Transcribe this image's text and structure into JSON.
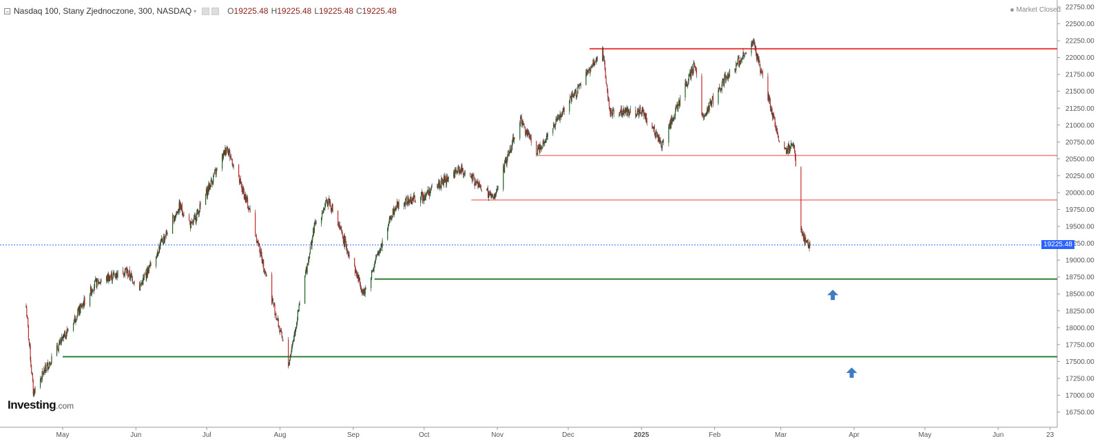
{
  "header": {
    "symbol_label": "Nasdaq 100, Stany Zjednoczone, 300, NASDAQ",
    "ohlc": [
      {
        "key": "O",
        "value": "19225.48"
      },
      {
        "key": "H",
        "value": "19225.48"
      },
      {
        "key": "L",
        "value": "19225.48"
      },
      {
        "key": "C",
        "value": "19225.48"
      }
    ]
  },
  "status": {
    "market_label": "Market Closed"
  },
  "branding": {
    "logo_main": "Investing",
    "logo_suffix": ".com"
  },
  "colors": {
    "up": "#26a69a",
    "up_dark": "#1b5e20",
    "down": "#c62828",
    "resistance": "#ef3b3b",
    "support": "#2e7d32",
    "current_price": "#2962ff",
    "arrow": "#3f7cc4"
  },
  "chart_data": {
    "type": "candlestick",
    "current_price": 19225.48,
    "current_price_label": "19225.48",
    "ylim": [
      16650,
      22800
    ],
    "y_ticks": [
      "16750.00",
      "17000.00",
      "17250.00",
      "17500.00",
      "17750.00",
      "18000.00",
      "18250.00",
      "18500.00",
      "18750.00",
      "19000.00",
      "19250.00",
      "19500.00",
      "19750.00",
      "20000.00",
      "20250.00",
      "20500.00",
      "20750.00",
      "21000.00",
      "21250.00",
      "21500.00",
      "21750.00",
      "22000.00",
      "22250.00",
      "22500.00",
      "22750.00"
    ],
    "x_ticks": [
      "May",
      "Jun",
      "Jul",
      "Aug",
      "Sep",
      "Oct",
      "Nov",
      "Dec",
      "2025",
      "Feb",
      "Mar",
      "Apr",
      "May",
      "Jun",
      "23"
    ],
    "anchors": [
      {
        "date": "2024-04-16",
        "close": 18300
      },
      {
        "date": "2024-04-19",
        "close": 17050
      },
      {
        "date": "2024-04-26",
        "close": 17500
      },
      {
        "date": "2024-05-15",
        "close": 18650
      },
      {
        "date": "2024-05-28",
        "close": 18850
      },
      {
        "date": "2024-06-03",
        "close": 18600
      },
      {
        "date": "2024-06-20",
        "close": 19800
      },
      {
        "date": "2024-06-25",
        "close": 19500
      },
      {
        "date": "2024-07-10",
        "close": 20680
      },
      {
        "date": "2024-07-19",
        "close": 19800
      },
      {
        "date": "2024-07-25",
        "close": 19000
      },
      {
        "date": "2024-08-05",
        "close": 17450
      },
      {
        "date": "2024-08-16",
        "close": 19500
      },
      {
        "date": "2024-08-22",
        "close": 19900
      },
      {
        "date": "2024-09-06",
        "close": 18500
      },
      {
        "date": "2024-09-19",
        "close": 19800
      },
      {
        "date": "2024-10-01",
        "close": 19950
      },
      {
        "date": "2024-10-17",
        "close": 20350
      },
      {
        "date": "2024-10-31",
        "close": 19900
      },
      {
        "date": "2024-11-11",
        "close": 21100
      },
      {
        "date": "2024-11-18",
        "close": 20600
      },
      {
        "date": "2024-12-05",
        "close": 21500
      },
      {
        "date": "2024-12-16",
        "close": 22130
      },
      {
        "date": "2024-12-19",
        "close": 21200
      },
      {
        "date": "2025-01-02",
        "close": 21200
      },
      {
        "date": "2025-01-10",
        "close": 20700
      },
      {
        "date": "2025-01-24",
        "close": 21900
      },
      {
        "date": "2025-01-27",
        "close": 21100
      },
      {
        "date": "2025-02-07",
        "close": 21750
      },
      {
        "date": "2025-02-18",
        "close": 22200
      },
      {
        "date": "2025-02-28",
        "close": 20900
      },
      {
        "date": "2025-03-03",
        "close": 20600
      },
      {
        "date": "2025-03-07",
        "close": 20700
      },
      {
        "date": "2025-03-10",
        "close": 19400
      },
      {
        "date": "2025-03-13",
        "close": 19225.48
      }
    ],
    "horizontal_lines": [
      {
        "kind": "resistance",
        "price": 22130,
        "from": "2024-12-10",
        "to": "2025-06-25"
      },
      {
        "kind": "resistance",
        "price": 20550,
        "from": "2024-11-18",
        "to": "2025-06-25"
      },
      {
        "kind": "resistance",
        "price": 19890,
        "from": "2024-10-21",
        "to": "2025-06-25"
      },
      {
        "kind": "support",
        "price": 18720,
        "from": "2024-09-10",
        "to": "2025-06-25"
      },
      {
        "kind": "support",
        "price": 17570,
        "from": "2024-05-01",
        "to": "2025-06-25"
      }
    ],
    "arrows": [
      {
        "direction": "up",
        "date": "2025-03-23",
        "price": 18480
      },
      {
        "direction": "up",
        "date": "2025-03-31",
        "price": 17330
      }
    ],
    "grid": false,
    "legend": "none"
  }
}
